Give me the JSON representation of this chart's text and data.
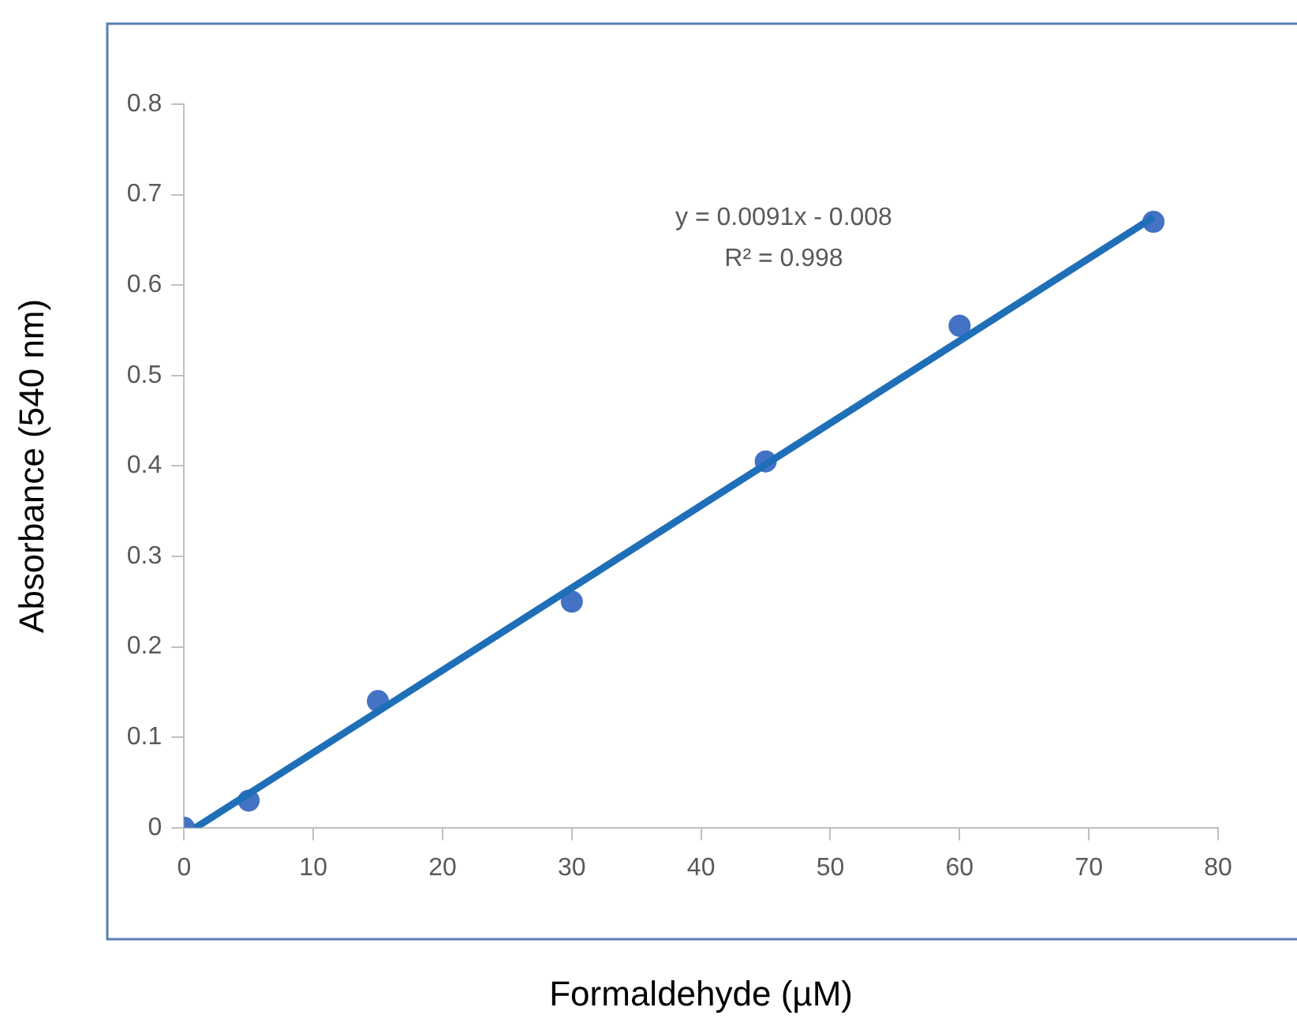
{
  "chart_data": {
    "type": "scatter",
    "xlabel": "Formaldehyde (µM)",
    "ylabel": "Absorbance (540 nm)",
    "xlim": [
      0,
      80
    ],
    "xticks": [
      0,
      10,
      20,
      30,
      40,
      50,
      60,
      70,
      80
    ],
    "ylim": [
      0,
      0.8
    ],
    "yticks": [
      0,
      0.1,
      0.2,
      0.3,
      0.4,
      0.5,
      0.6,
      0.7,
      0.8
    ],
    "grid": false,
    "legend": false,
    "marker": "circle",
    "annotations": [
      "y = 0.0091x - 0.008",
      "R² = 0.998"
    ],
    "series": [
      {
        "color": "#4472c4",
        "x": [
          0,
          5,
          15,
          30,
          45,
          60,
          75
        ],
        "values": [
          0,
          0.03,
          0.14,
          0.25,
          0.405,
          0.555,
          0.67
        ]
      },
      {
        "type": "line",
        "marker": "none",
        "color": "#1f6fb8",
        "x": [
          0.88,
          75
        ],
        "values": [
          0,
          0.675
        ]
      }
    ]
  }
}
